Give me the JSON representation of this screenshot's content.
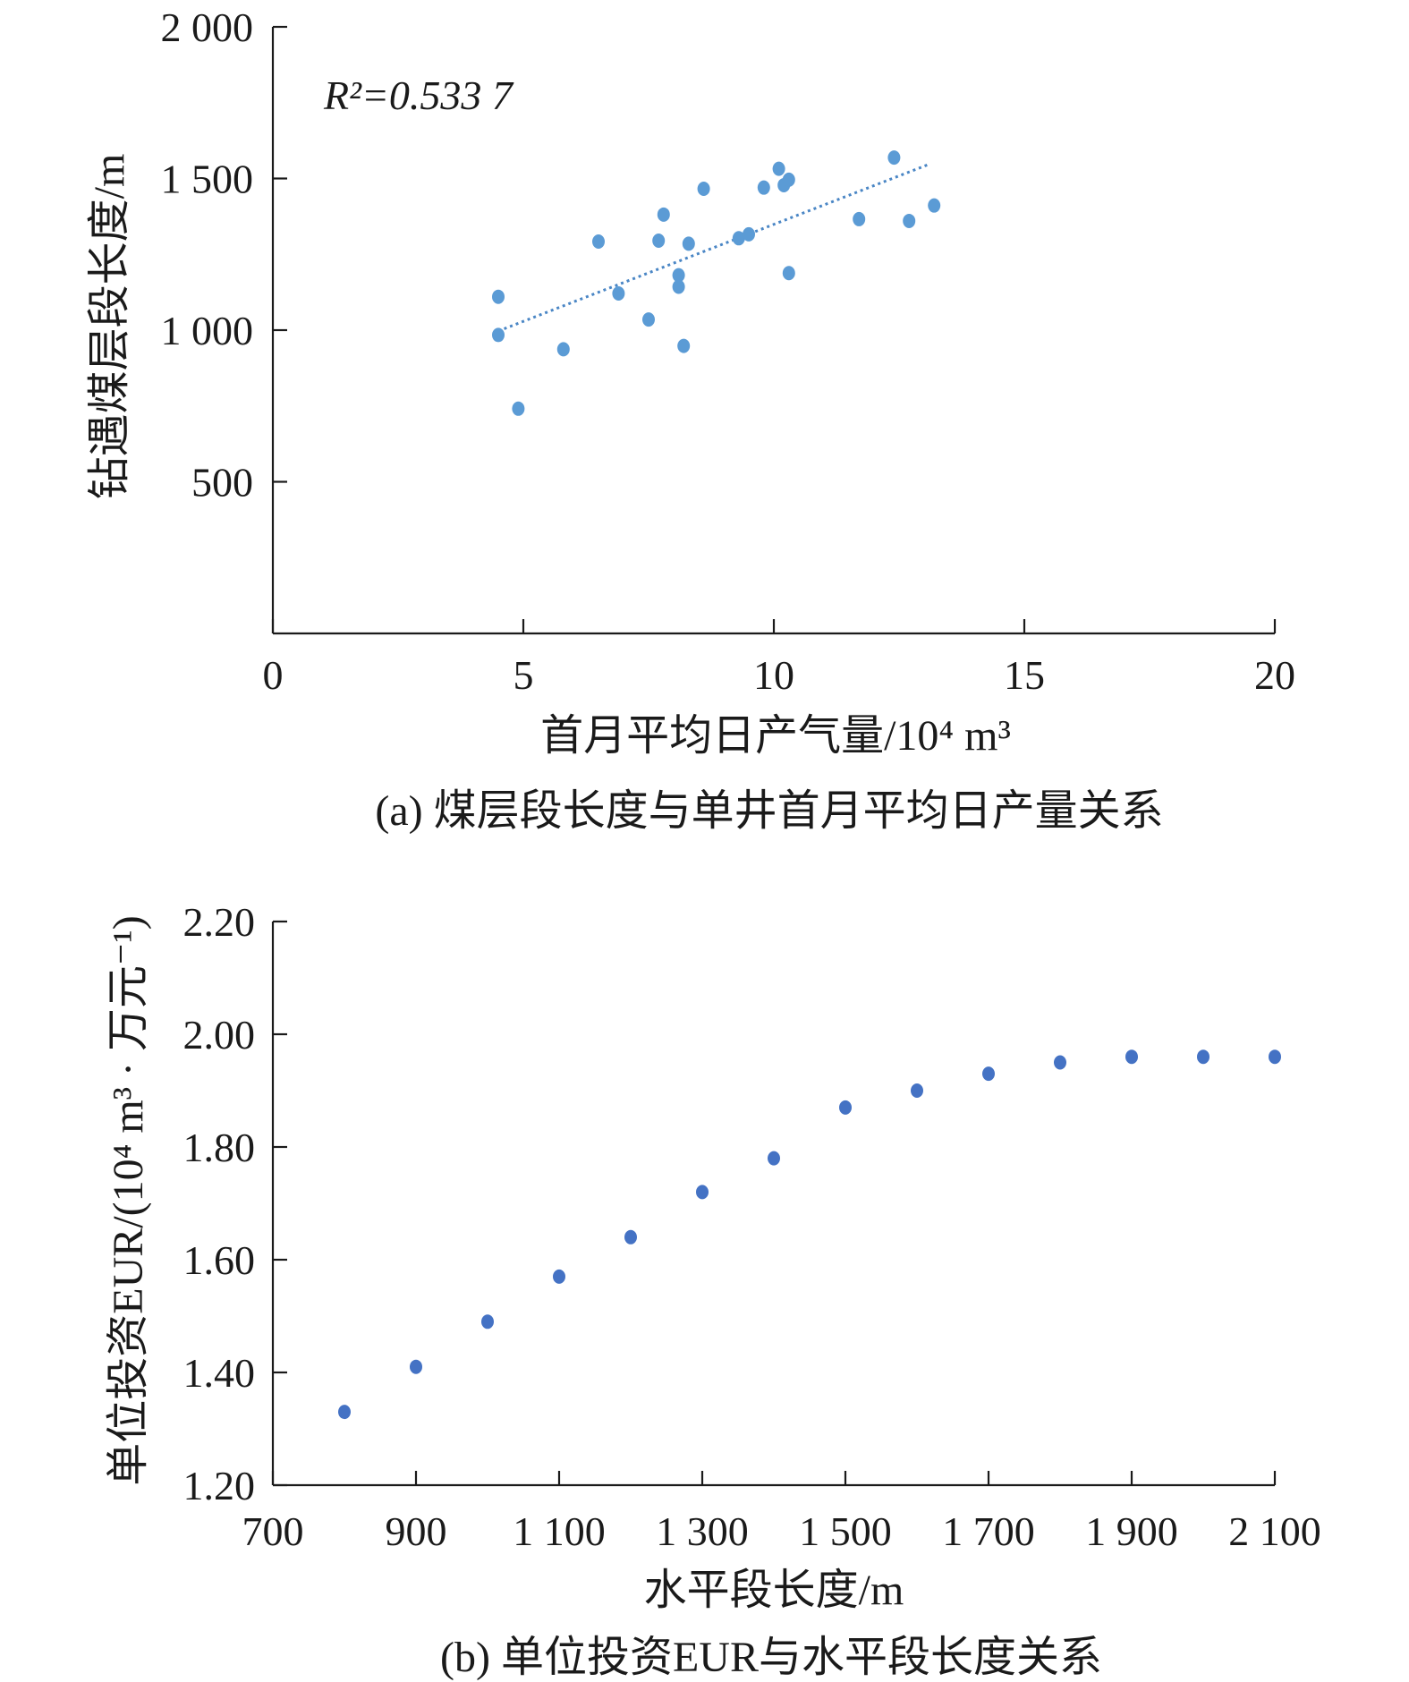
{
  "colors": {
    "points_a": "#5b9bd5",
    "points_b": "#4472c4",
    "axis": "#1a1a1a",
    "trend": "#4a86c5"
  },
  "chart_data": [
    {
      "type": "scatter",
      "title": "",
      "caption": "(a) 煤层段长度与单井首月平均日产量关系",
      "xlabel": "首月平均日产气量/10⁴ m³",
      "ylabel": "钻遇煤层段长度/m",
      "xlim": [
        0,
        20
      ],
      "ylim": [
        0,
        2000
      ],
      "xticks": [
        0,
        5,
        10,
        15,
        20
      ],
      "xtick_labels": [
        "0",
        "5",
        "10",
        "15",
        "20"
      ],
      "yticks": [
        500,
        1000,
        1500,
        2000
      ],
      "ytick_labels": [
        "500",
        "1 000",
        "1 500",
        "2 000"
      ],
      "annotation": "R²=0.533 7",
      "trendline": {
        "type": "linear",
        "x": [
          4.5,
          13.1
        ],
        "y": [
          997,
          1547
        ]
      },
      "points": [
        [
          4.5,
          1110
        ],
        [
          4.5,
          984
        ],
        [
          4.9,
          741
        ],
        [
          5.8,
          937
        ],
        [
          6.5,
          1292
        ],
        [
          6.9,
          1121
        ],
        [
          7.5,
          1035
        ],
        [
          7.7,
          1295
        ],
        [
          7.8,
          1381
        ],
        [
          8.1,
          1181
        ],
        [
          8.1,
          1143
        ],
        [
          8.2,
          948
        ],
        [
          8.3,
          1285
        ],
        [
          8.6,
          1466
        ],
        [
          9.3,
          1303
        ],
        [
          9.5,
          1316
        ],
        [
          9.8,
          1470
        ],
        [
          10.1,
          1532
        ],
        [
          10.2,
          1478
        ],
        [
          10.3,
          1496
        ],
        [
          10.3,
          1188
        ],
        [
          11.7,
          1366
        ],
        [
          12.4,
          1569
        ],
        [
          12.7,
          1360
        ],
        [
          13.2,
          1411
        ]
      ]
    },
    {
      "type": "scatter",
      "title": "",
      "caption": "(b) 单位投资EUR与水平段长度关系",
      "xlabel": "水平段长度/m",
      "ylabel": "单位投资EUR/(10⁴ m³ · 万元⁻¹)",
      "xlim": [
        700,
        2100
      ],
      "ylim": [
        1.2,
        2.2
      ],
      "xticks": [
        700,
        900,
        1100,
        1300,
        1500,
        1700,
        1900,
        2100
      ],
      "xtick_labels": [
        "700",
        "900",
        "1 100",
        "1 300",
        "1 500",
        "1 700",
        "1 900",
        "2 100"
      ],
      "yticks": [
        1.2,
        1.4,
        1.6,
        1.8,
        2.0,
        2.2
      ],
      "ytick_labels": [
        "1.20",
        "1.40",
        "1.60",
        "1.80",
        "2.00",
        "2.20"
      ],
      "points": [
        [
          800,
          1.33
        ],
        [
          900,
          1.41
        ],
        [
          1000,
          1.49
        ],
        [
          1100,
          1.57
        ],
        [
          1200,
          1.64
        ],
        [
          1300,
          1.72
        ],
        [
          1400,
          1.78
        ],
        [
          1500,
          1.87
        ],
        [
          1600,
          1.9
        ],
        [
          1700,
          1.93
        ],
        [
          1800,
          1.95
        ],
        [
          1900,
          1.96
        ],
        [
          2000,
          1.96
        ],
        [
          2100,
          1.96
        ]
      ]
    }
  ]
}
